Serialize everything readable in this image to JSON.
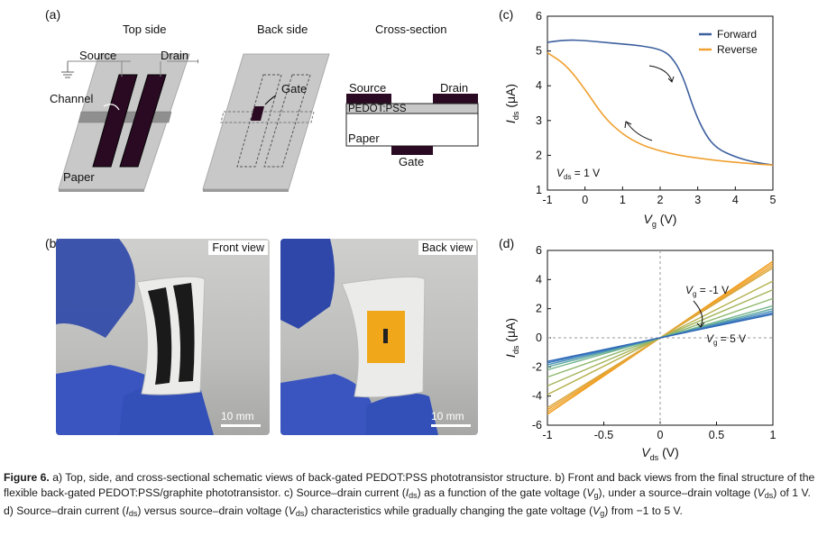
{
  "panels": {
    "a_label": "(a)",
    "b_label": "(b)",
    "c_label": "(c)",
    "d_label": "(d)"
  },
  "schematic": {
    "top_side": "Top side",
    "back_side": "Back side",
    "cross_section": "Cross-section",
    "source": "Source",
    "drain": "Drain",
    "channel": "Channel",
    "paper": "Paper",
    "gate": "Gate",
    "cs_source": "Source",
    "cs_drain": "Drain",
    "cs_pedot": "PEDOT:PSS",
    "cs_paper": "Paper",
    "cs_gate": "Gate"
  },
  "photos": {
    "front_view": "Front view",
    "back_view": "Back view",
    "scale_front": "10 mm",
    "scale_back": "10 mm"
  },
  "chart_data": [
    {
      "id": "c",
      "type": "line",
      "xlabel": "V_g (V)",
      "ylabel": "I_ds (μA)",
      "xlim": [
        -1,
        5
      ],
      "ylim": [
        1,
        6
      ],
      "xticks": [
        -1,
        0,
        1,
        2,
        3,
        4,
        5
      ],
      "yticks": [
        1,
        2,
        3,
        4,
        5,
        6
      ],
      "annotation": "V_ds = 1 V",
      "legend_position": "top-right",
      "series": [
        {
          "name": "Forward",
          "color": "#3c5f9e",
          "x": [
            -1,
            -0.5,
            0,
            0.5,
            1,
            1.5,
            2,
            2.3,
            2.6,
            2.9,
            3.2,
            3.5,
            4,
            4.5,
            5
          ],
          "y": [
            5.25,
            5.32,
            5.3,
            5.25,
            5.2,
            5.15,
            5.05,
            4.85,
            4.3,
            3.3,
            2.6,
            2.2,
            1.95,
            1.8,
            1.72
          ]
        },
        {
          "name": "Reverse",
          "color": "#f0a030",
          "x": [
            -1,
            -0.5,
            0,
            0.5,
            1,
            1.5,
            2,
            2.5,
            3,
            3.5,
            4,
            4.5,
            5
          ],
          "y": [
            4.95,
            4.6,
            3.9,
            3.1,
            2.6,
            2.3,
            2.12,
            2.0,
            1.92,
            1.85,
            1.8,
            1.75,
            1.72
          ]
        }
      ]
    },
    {
      "id": "d",
      "type": "line",
      "xlabel": "V_ds (V)",
      "ylabel": "I_ds (μA)",
      "xlim": [
        -1,
        1
      ],
      "ylim": [
        -6,
        6
      ],
      "xticks": [
        -1,
        -0.5,
        0,
        0.5,
        1
      ],
      "yticks": [
        -6,
        -4,
        -2,
        0,
        2,
        4,
        6
      ],
      "annotations": [
        "V_g = -1 V",
        "V_g = 5 V"
      ],
      "series": [
        {
          "slope": 5.25,
          "color": "#f09a1a"
        },
        {
          "slope": 5.1,
          "color": "#f2a52a"
        },
        {
          "slope": 4.95,
          "color": "#e8a232"
        },
        {
          "slope": 4.8,
          "color": "#d9a83e"
        },
        {
          "slope": 3.9,
          "color": "#b5b04a"
        },
        {
          "slope": 3.3,
          "color": "#a3b45a"
        },
        {
          "slope": 2.7,
          "color": "#8eb86c"
        },
        {
          "slope": 2.2,
          "color": "#74b58a"
        },
        {
          "slope": 2.0,
          "color": "#5ea8a0"
        },
        {
          "slope": 1.85,
          "color": "#4a8fb8"
        },
        {
          "slope": 1.72,
          "color": "#3a78c0"
        },
        {
          "slope": 1.62,
          "color": "#2e68b6"
        }
      ]
    }
  ],
  "caption": {
    "fig": "Figure 6.",
    "text_a": "a) Top, side, and cross-sectional schematic views of back-gated PEDOT:PSS phototransistor structure. b) Front and back views from the final structure of the flexible back-gated PEDOT:PSS/graphite phototransistor. c",
    "text_c": ") Source–drain current (",
    "text_c2": ") as a function of the gate voltage (",
    "text_c3": "), under a source–drain voltage (",
    "text_c4": ") of 1 V. d) Source–drain current (",
    "text_d2": ") versus source–drain voltage (",
    "text_d3": ") characteristics while gradually changing the gate voltage (",
    "text_d4": ") from −1 to 5 V.",
    "ids": "I",
    "ids_sub": "ds",
    "vg": "V",
    "vg_sub": "g",
    "vds": "V",
    "vds_sub": "ds"
  }
}
